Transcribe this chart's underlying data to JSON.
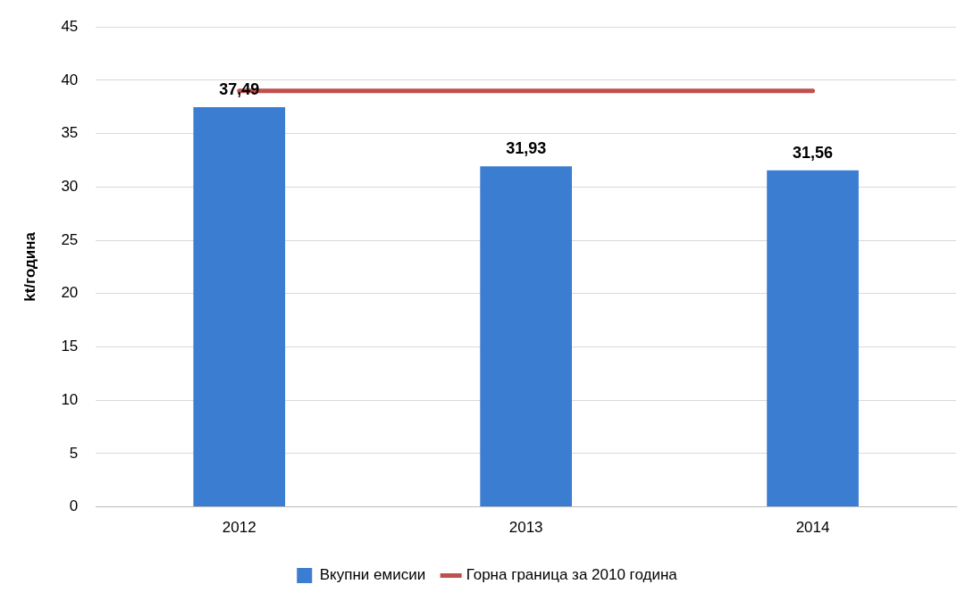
{
  "chart_data": {
    "type": "bar",
    "ylabel": "kt/година",
    "categories": [
      "2012",
      "2013",
      "2014"
    ],
    "series": [
      {
        "name": "Вкупни емисии",
        "color": "#3b7dd0",
        "values": [
          37.49,
          31.93,
          31.56
        ],
        "value_labels": [
          "37,49",
          "31,93",
          "31,56"
        ]
      },
      {
        "name": "Горна граница за 2010 година",
        "type": "line",
        "color": "#c0504d",
        "values": [
          39,
          39,
          39
        ]
      }
    ],
    "ylim": [
      0,
      45
    ],
    "yticks": [
      0,
      5,
      10,
      15,
      20,
      25,
      30,
      35,
      40,
      45
    ],
    "grid": "y",
    "legend": "bottom",
    "marker": "none"
  }
}
